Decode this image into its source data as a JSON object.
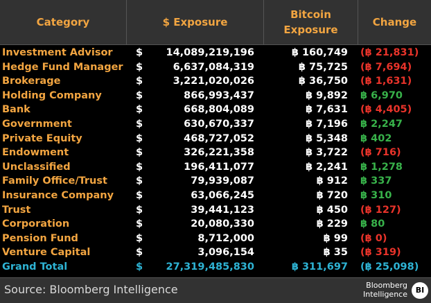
{
  "header": {
    "category": "Category",
    "usd_exposure": "$ Exposure",
    "btc_exposure_line1": "Bitcoin",
    "btc_exposure_line2": "Exposure",
    "change": "Change"
  },
  "rows": [
    {
      "category": "Investment Advisor",
      "dollar": "$",
      "usd": "14,089,219,196",
      "btc": "฿ 160,749",
      "change": "(฿ 21,831)",
      "change_sign": "neg"
    },
    {
      "category": "Hedge Fund Manager",
      "dollar": "$",
      "usd": "6,637,084,319",
      "btc": "฿ 75,725",
      "change": "(฿ 7,694)",
      "change_sign": "neg"
    },
    {
      "category": "Brokerage",
      "dollar": "$",
      "usd": "3,221,020,026",
      "btc": "฿ 36,750",
      "change": "(฿ 1,631)",
      "change_sign": "neg"
    },
    {
      "category": "Holding Company",
      "dollar": "$",
      "usd": "866,993,437",
      "btc": "฿ 9,892",
      "change": "฿ 6,970",
      "change_sign": "pos"
    },
    {
      "category": "Bank",
      "dollar": "$",
      "usd": "668,804,089",
      "btc": "฿ 7,631",
      "change": "(฿ 4,405)",
      "change_sign": "neg"
    },
    {
      "category": "Government",
      "dollar": "$",
      "usd": "630,670,337",
      "btc": "฿ 7,196",
      "change": "฿ 2,247",
      "change_sign": "pos"
    },
    {
      "category": "Private Equity",
      "dollar": "$",
      "usd": "468,727,052",
      "btc": "฿ 5,348",
      "change": "฿ 402",
      "change_sign": "pos"
    },
    {
      "category": "Endowment",
      "dollar": "$",
      "usd": "326,221,358",
      "btc": "฿ 3,722",
      "change": "(฿ 716)",
      "change_sign": "neg"
    },
    {
      "category": "Unclassified",
      "dollar": "$",
      "usd": "196,411,077",
      "btc": "฿ 2,241",
      "change": "฿ 1,278",
      "change_sign": "pos"
    },
    {
      "category": "Family Office/Trust",
      "dollar": "$",
      "usd": "79,939,087",
      "btc": "฿ 912",
      "change": "฿ 337",
      "change_sign": "pos"
    },
    {
      "category": "Insurance Company",
      "dollar": "$",
      "usd": "63,066,245",
      "btc": "฿ 720",
      "change": "฿ 310",
      "change_sign": "pos"
    },
    {
      "category": "Trust",
      "dollar": "$",
      "usd": "39,441,123",
      "btc": "฿ 450",
      "change": "(฿ 127)",
      "change_sign": "neg"
    },
    {
      "category": "Corporation",
      "dollar": "$",
      "usd": "20,080,330",
      "btc": "฿ 229",
      "change": "฿ 80",
      "change_sign": "pos"
    },
    {
      "category": "Pension Fund",
      "dollar": "$",
      "usd": "8,712,000",
      "btc": "฿ 99",
      "change": "(฿ 0)",
      "change_sign": "neg"
    },
    {
      "category": "Venture Capital",
      "dollar": "$",
      "usd": "3,096,154",
      "btc": "฿ 35",
      "change": "(฿ 319)",
      "change_sign": "neg"
    }
  ],
  "total": {
    "category": "Grand Total",
    "dollar": "$",
    "usd": "27,319,485,830",
    "btc": "฿ 311,697",
    "change": "(฿ 25,098)"
  },
  "footer": {
    "source": "Source: Bloomberg Intelligence",
    "brand_line1": "Bloomberg",
    "brand_line2": "Intelligence",
    "logo": "BI"
  },
  "colors": {
    "header_bg": "#323232",
    "category_text": "#f2a541",
    "negative": "#e8332a",
    "positive": "#38b24a",
    "total_text": "#2eb3d4"
  }
}
